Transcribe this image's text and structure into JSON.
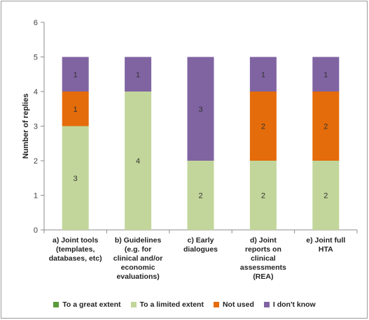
{
  "chart_data": {
    "type": "bar",
    "stacked": true,
    "ylabel": "Number of replies",
    "xlabel": "",
    "ylim": [
      0,
      6
    ],
    "yticks": [
      0,
      1,
      2,
      3,
      4,
      5,
      6
    ],
    "grid": false,
    "legend_position": "bottom",
    "categories": [
      [
        "a) Joint tools",
        "(templates,",
        "databases, etc)"
      ],
      [
        "b) Guidelines",
        "(e.g. for",
        "clinical and/or",
        "economic",
        "evaluations)"
      ],
      [
        "c) Early",
        "dialogues"
      ],
      [
        "d) Joint",
        "reports on",
        "clinical",
        "assessments",
        "(REA)"
      ],
      [
        "e) Joint full",
        "HTA"
      ]
    ],
    "series": [
      {
        "name": "To a great extent",
        "color": "#5b9a3c",
        "values": [
          0,
          0,
          0,
          0,
          0
        ]
      },
      {
        "name": "To a limited extent",
        "color": "#c2d69b",
        "values": [
          3,
          4,
          2,
          2,
          2
        ]
      },
      {
        "name": "Not used",
        "color": "#e46c0a",
        "values": [
          1,
          0,
          0,
          2,
          2
        ]
      },
      {
        "name": "I don't know",
        "color": "#8064a2",
        "values": [
          1,
          1,
          3,
          1,
          1
        ]
      }
    ]
  }
}
